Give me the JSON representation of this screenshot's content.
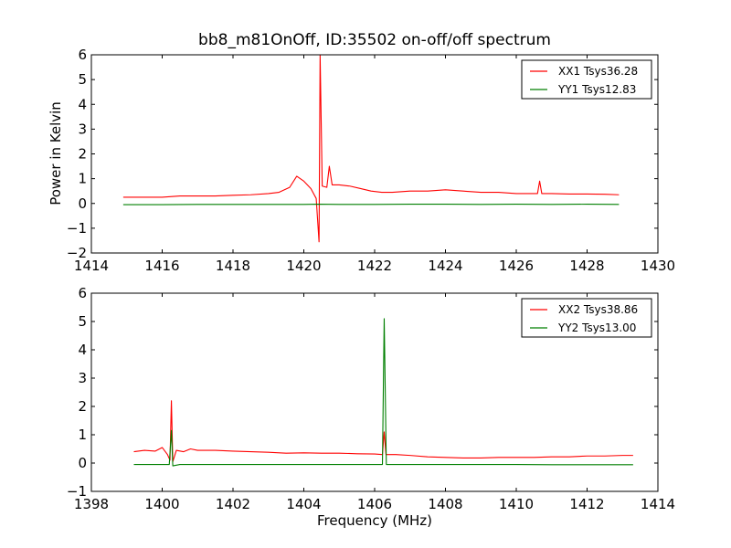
{
  "figure": {
    "title": "bb8_m81OnOff, ID:35502 on-off/off spectrum",
    "ylabel": "Power in Kelvin",
    "xlabel": "Frequency (MHz)"
  },
  "colors": {
    "xx": "#ff0000",
    "yy": "#007f00"
  },
  "chart_data": [
    {
      "type": "line",
      "xlim": [
        1414,
        1430
      ],
      "ylim": [
        -2,
        6
      ],
      "xticks": [
        1414,
        1416,
        1418,
        1420,
        1422,
        1424,
        1426,
        1428,
        1430
      ],
      "yticks": [
        -2,
        -1,
        0,
        1,
        2,
        3,
        4,
        5,
        6
      ],
      "legend_position": "top-right",
      "grid": false,
      "series": [
        {
          "name": "XX1 Tsys36.28",
          "color": "#ff0000",
          "points": [
            [
              1414.9,
              0.25
            ],
            [
              1415.5,
              0.25
            ],
            [
              1416.0,
              0.25
            ],
            [
              1416.5,
              0.3
            ],
            [
              1417.0,
              0.3
            ],
            [
              1417.5,
              0.3
            ],
            [
              1418.0,
              0.33
            ],
            [
              1418.5,
              0.35
            ],
            [
              1419.0,
              0.4
            ],
            [
              1419.3,
              0.45
            ],
            [
              1419.6,
              0.65
            ],
            [
              1419.8,
              1.1
            ],
            [
              1420.0,
              0.9
            ],
            [
              1420.2,
              0.6
            ],
            [
              1420.35,
              0.2
            ],
            [
              1420.43,
              -1.55
            ],
            [
              1420.46,
              6.0
            ],
            [
              1420.52,
              0.7
            ],
            [
              1420.65,
              0.65
            ],
            [
              1420.72,
              1.5
            ],
            [
              1420.8,
              0.75
            ],
            [
              1421.0,
              0.75
            ],
            [
              1421.3,
              0.7
            ],
            [
              1421.6,
              0.6
            ],
            [
              1421.9,
              0.5
            ],
            [
              1422.2,
              0.45
            ],
            [
              1422.5,
              0.45
            ],
            [
              1423.0,
              0.5
            ],
            [
              1423.5,
              0.5
            ],
            [
              1424.0,
              0.55
            ],
            [
              1424.5,
              0.5
            ],
            [
              1425.0,
              0.45
            ],
            [
              1425.5,
              0.45
            ],
            [
              1426.0,
              0.4
            ],
            [
              1426.6,
              0.4
            ],
            [
              1426.66,
              0.9
            ],
            [
              1426.72,
              0.4
            ],
            [
              1427.0,
              0.4
            ],
            [
              1427.5,
              0.38
            ],
            [
              1428.0,
              0.38
            ],
            [
              1428.5,
              0.37
            ],
            [
              1428.9,
              0.35
            ]
          ]
        },
        {
          "name": "YY1 Tsys12.83",
          "color": "#007f00",
          "points": [
            [
              1414.9,
              -0.05
            ],
            [
              1416.0,
              -0.05
            ],
            [
              1417.0,
              -0.04
            ],
            [
              1418.0,
              -0.04
            ],
            [
              1419.0,
              -0.04
            ],
            [
              1420.0,
              -0.04
            ],
            [
              1420.4,
              -0.03
            ],
            [
              1421.0,
              -0.04
            ],
            [
              1422.0,
              -0.04
            ],
            [
              1423.0,
              -0.03
            ],
            [
              1424.0,
              -0.03
            ],
            [
              1425.0,
              -0.04
            ],
            [
              1426.0,
              -0.03
            ],
            [
              1427.0,
              -0.04
            ],
            [
              1428.0,
              -0.03
            ],
            [
              1428.9,
              -0.04
            ]
          ]
        }
      ]
    },
    {
      "type": "line",
      "xlim": [
        1398,
        1414
      ],
      "ylim": [
        -1,
        6
      ],
      "xticks": [
        1398,
        1400,
        1402,
        1404,
        1406,
        1408,
        1410,
        1412,
        1414
      ],
      "yticks": [
        -1,
        0,
        1,
        2,
        3,
        4,
        5,
        6
      ],
      "legend_position": "top-right",
      "grid": false,
      "series": [
        {
          "name": "XX2 Tsys38.86",
          "color": "#ff0000",
          "points": [
            [
              1399.2,
              0.4
            ],
            [
              1399.5,
              0.45
            ],
            [
              1399.8,
              0.42
            ],
            [
              1400.0,
              0.55
            ],
            [
              1400.15,
              0.3
            ],
            [
              1400.22,
              0.1
            ],
            [
              1400.26,
              2.2
            ],
            [
              1400.3,
              0.05
            ],
            [
              1400.4,
              0.45
            ],
            [
              1400.6,
              0.4
            ],
            [
              1400.8,
              0.5
            ],
            [
              1401.0,
              0.45
            ],
            [
              1401.5,
              0.45
            ],
            [
              1402.0,
              0.42
            ],
            [
              1402.5,
              0.4
            ],
            [
              1403.0,
              0.38
            ],
            [
              1403.5,
              0.35
            ],
            [
              1404.0,
              0.36
            ],
            [
              1404.5,
              0.35
            ],
            [
              1405.0,
              0.35
            ],
            [
              1405.5,
              0.33
            ],
            [
              1406.0,
              0.32
            ],
            [
              1406.22,
              0.3
            ],
            [
              1406.27,
              1.1
            ],
            [
              1406.32,
              0.3
            ],
            [
              1406.6,
              0.3
            ],
            [
              1407.0,
              0.27
            ],
            [
              1407.5,
              0.22
            ],
            [
              1408.0,
              0.2
            ],
            [
              1408.5,
              0.18
            ],
            [
              1409.0,
              0.18
            ],
            [
              1409.5,
              0.2
            ],
            [
              1410.0,
              0.2
            ],
            [
              1410.5,
              0.2
            ],
            [
              1411.0,
              0.22
            ],
            [
              1411.5,
              0.22
            ],
            [
              1412.0,
              0.25
            ],
            [
              1412.5,
              0.25
            ],
            [
              1413.0,
              0.27
            ],
            [
              1413.3,
              0.27
            ]
          ]
        },
        {
          "name": "YY2 Tsys13.00",
          "color": "#007f00",
          "points": [
            [
              1399.2,
              -0.05
            ],
            [
              1399.6,
              -0.05
            ],
            [
              1400.0,
              -0.05
            ],
            [
              1400.2,
              -0.05
            ],
            [
              1400.26,
              1.15
            ],
            [
              1400.3,
              -0.1
            ],
            [
              1400.5,
              -0.05
            ],
            [
              1401.0,
              -0.05
            ],
            [
              1402.0,
              -0.05
            ],
            [
              1403.0,
              -0.05
            ],
            [
              1404.0,
              -0.05
            ],
            [
              1405.0,
              -0.05
            ],
            [
              1406.0,
              -0.05
            ],
            [
              1406.22,
              -0.05
            ],
            [
              1406.27,
              5.1
            ],
            [
              1406.33,
              -0.05
            ],
            [
              1407.0,
              -0.05
            ],
            [
              1408.0,
              -0.05
            ],
            [
              1409.0,
              -0.05
            ],
            [
              1410.0,
              -0.05
            ],
            [
              1411.0,
              -0.06
            ],
            [
              1412.0,
              -0.06
            ],
            [
              1413.0,
              -0.06
            ],
            [
              1413.3,
              -0.06
            ]
          ]
        }
      ]
    }
  ]
}
